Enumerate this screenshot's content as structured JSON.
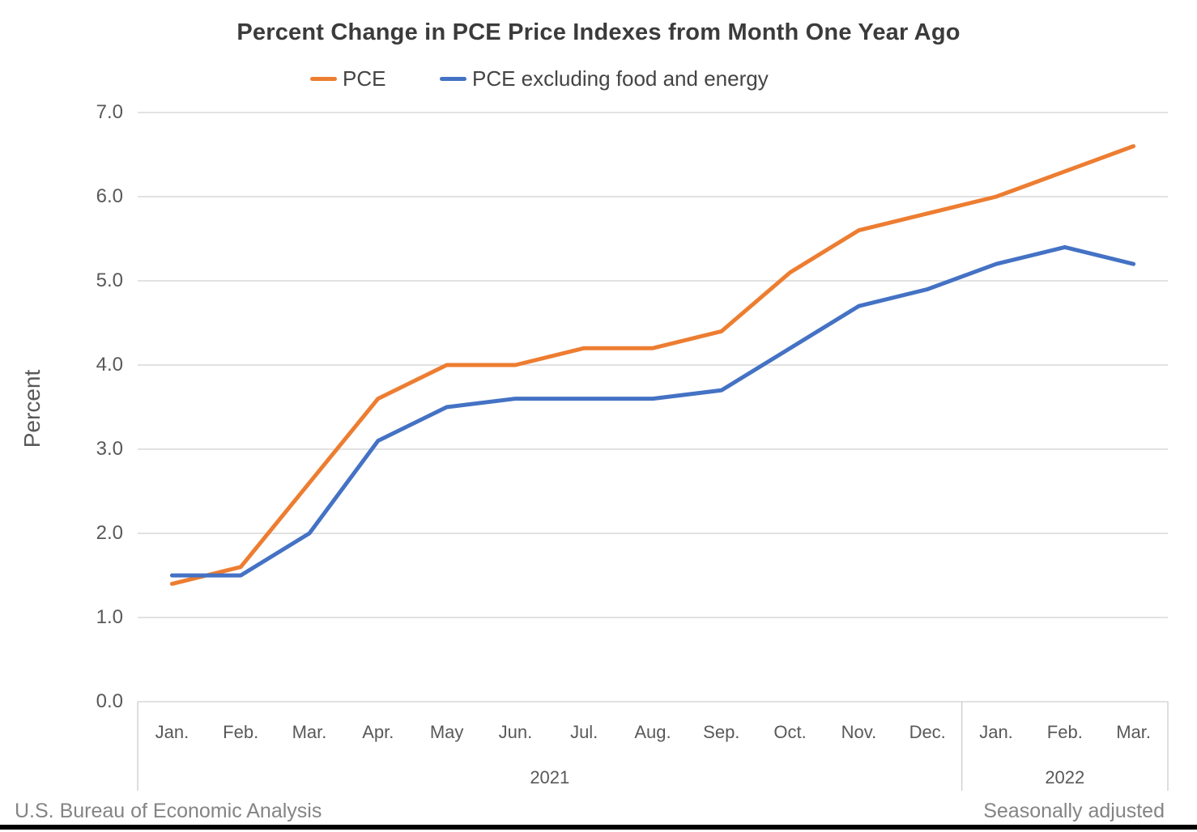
{
  "title": "Percent Change in PCE Price Indexes from Month One Year Ago",
  "y_axis_title": "Percent",
  "footer": {
    "left": "U.S. Bureau of Economic Analysis",
    "right": "Seasonally adjusted"
  },
  "colors": {
    "pce": "#ED7D31",
    "core_pce": "#4472C4",
    "gridline": "#D9D9D9",
    "axis_text": "#595959"
  },
  "chart_data": {
    "type": "line",
    "title": "Percent Change in PCE Price Indexes from Month One Year Ago",
    "xlabel": "",
    "ylabel": "Percent",
    "ylim": [
      0.0,
      7.0
    ],
    "ytick_step": 1.0,
    "yticks": [
      "0.0",
      "1.0",
      "2.0",
      "3.0",
      "4.0",
      "5.0",
      "6.0",
      "7.0"
    ],
    "grid": "horizontal",
    "legend_position": "top",
    "categories": [
      "Jan.",
      "Feb.",
      "Mar.",
      "Apr.",
      "May",
      "Jun.",
      "Jul.",
      "Aug.",
      "Sep.",
      "Oct.",
      "Nov.",
      "Dec.",
      "Jan.",
      "Feb.",
      "Mar."
    ],
    "year_groups": [
      {
        "label": "2021",
        "start": 0,
        "end": 11
      },
      {
        "label": "2022",
        "start": 12,
        "end": 14
      }
    ],
    "series": [
      {
        "name": "PCE",
        "color": "#ED7D31",
        "values": [
          1.4,
          1.6,
          2.6,
          3.6,
          4.0,
          4.0,
          4.2,
          4.2,
          4.4,
          5.1,
          5.6,
          5.8,
          6.0,
          6.3,
          6.6
        ]
      },
      {
        "name": "PCE excluding food and energy",
        "color": "#4472C4",
        "values": [
          1.5,
          1.5,
          2.0,
          3.1,
          3.5,
          3.6,
          3.6,
          3.6,
          3.7,
          4.2,
          4.7,
          4.9,
          5.2,
          5.4,
          5.2
        ]
      }
    ]
  }
}
